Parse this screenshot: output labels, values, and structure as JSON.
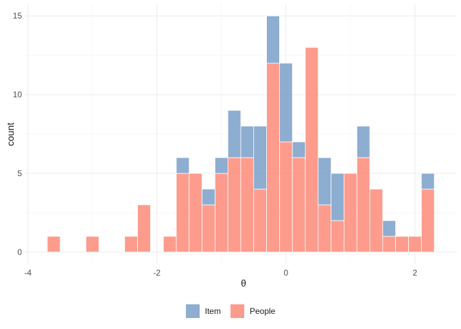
{
  "chart_data": {
    "type": "bar",
    "subtype": "stacked-histogram",
    "xlabel": "θ",
    "ylabel": "count",
    "xlim": [
      -4.05,
      2.65
    ],
    "ylim": [
      -0.75,
      15.75
    ],
    "x_ticks": [
      -4,
      -2,
      0,
      2
    ],
    "x_tick_labels": [
      "-4",
      "-2",
      "0",
      "2"
    ],
    "y_ticks": [
      0,
      5,
      10,
      15
    ],
    "y_tick_labels": [
      "0",
      "5",
      "10",
      "15"
    ],
    "grid": true,
    "legend_position": "bottom",
    "bin_width": 0.2,
    "series": [
      {
        "name": "Item",
        "color": "#7199C5",
        "bins": [
          {
            "x": -1.6,
            "value": 1
          },
          {
            "x": -1.2,
            "value": 1
          },
          {
            "x": -1.0,
            "value": 1
          },
          {
            "x": -0.8,
            "value": 3
          },
          {
            "x": -0.6,
            "value": 2
          },
          {
            "x": -0.4,
            "value": 4
          },
          {
            "x": -0.2,
            "value": 3
          },
          {
            "x": 0.0,
            "value": 5
          },
          {
            "x": 0.2,
            "value": 1
          },
          {
            "x": 0.6,
            "value": 3
          },
          {
            "x": 0.8,
            "value": 3
          },
          {
            "x": 1.2,
            "value": 2
          },
          {
            "x": 1.6,
            "value": 1
          },
          {
            "x": 2.2,
            "value": 1
          }
        ]
      },
      {
        "name": "People",
        "color": "#FC8370",
        "bins": [
          {
            "x": -3.6,
            "value": 1
          },
          {
            "x": -3.0,
            "value": 1
          },
          {
            "x": -2.4,
            "value": 1
          },
          {
            "x": -2.2,
            "value": 3
          },
          {
            "x": -1.8,
            "value": 1
          },
          {
            "x": -1.6,
            "value": 5
          },
          {
            "x": -1.4,
            "value": 5
          },
          {
            "x": -1.2,
            "value": 3
          },
          {
            "x": -1.0,
            "value": 5
          },
          {
            "x": -0.8,
            "value": 6
          },
          {
            "x": -0.6,
            "value": 6
          },
          {
            "x": -0.4,
            "value": 4
          },
          {
            "x": -0.2,
            "value": 12
          },
          {
            "x": 0.0,
            "value": 7
          },
          {
            "x": 0.2,
            "value": 6
          },
          {
            "x": 0.4,
            "value": 13
          },
          {
            "x": 0.6,
            "value": 3
          },
          {
            "x": 0.8,
            "value": 2
          },
          {
            "x": 1.0,
            "value": 5
          },
          {
            "x": 1.2,
            "value": 6
          },
          {
            "x": 1.4,
            "value": 4
          },
          {
            "x": 1.6,
            "value": 1
          },
          {
            "x": 1.8,
            "value": 1
          },
          {
            "x": 2.0,
            "value": 1
          },
          {
            "x": 2.2,
            "value": 4
          }
        ]
      }
    ]
  }
}
